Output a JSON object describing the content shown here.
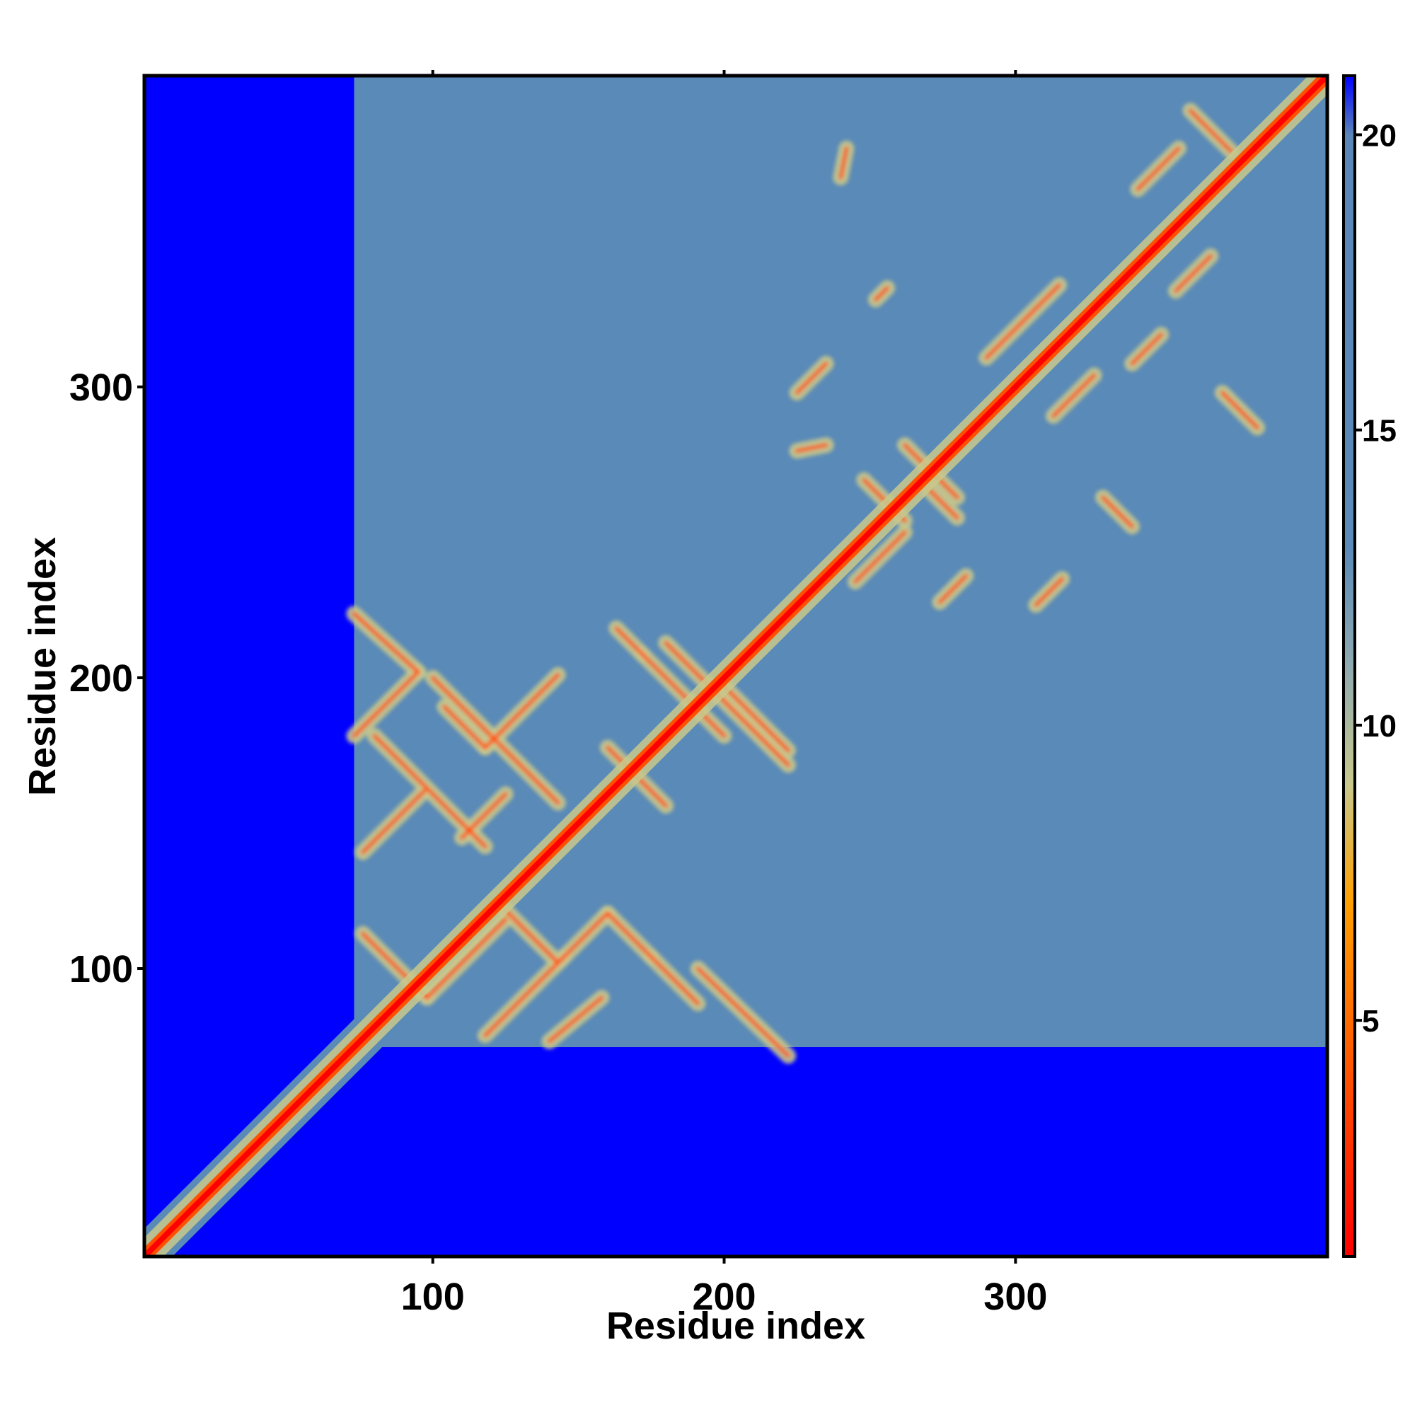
{
  "chart_data": {
    "type": "heatmap",
    "title": "",
    "xlabel": "Residue index",
    "ylabel": "Residue index",
    "xlim": [
      1,
      407
    ],
    "ylim": [
      1,
      407
    ],
    "x_ticks": [
      100,
      200,
      300
    ],
    "y_ticks": [
      100,
      200,
      300
    ],
    "x_tick_labels": [
      "100",
      "200",
      "300"
    ],
    "y_tick_labels": [
      "100",
      "200",
      "300"
    ],
    "colorbar": {
      "range": [
        1,
        21
      ],
      "ticks": [
        5,
        10,
        15,
        20
      ],
      "tick_labels": [
        "5",
        "10",
        "15",
        "20"
      ],
      "stops": [
        {
          "value": 1,
          "color": "#ff0000"
        },
        {
          "value": 4,
          "color": "#ff5000"
        },
        {
          "value": 7,
          "color": "#ffa000"
        },
        {
          "value": 9,
          "color": "#c8c88c"
        },
        {
          "value": 11,
          "color": "#8faab0"
        },
        {
          "value": 13,
          "color": "#5a8ab8"
        },
        {
          "value": 20,
          "color": "#5a85b8"
        },
        {
          "value": 21,
          "color": "#0000ff"
        }
      ]
    },
    "protein_region": {
      "core_residue_range": [
        73,
        407
      ],
      "n_terminal_tail_range": [
        1,
        73
      ],
      "domain_1": [
        73,
        225
      ],
      "domain_2": [
        225,
        407
      ]
    },
    "diagonal": {
      "from": 1,
      "to": 407,
      "value": 1
    },
    "secondary_contacts": [
      {
        "x1": 73,
        "y1": 222,
        "x2": 95,
        "y2": 202
      },
      {
        "x1": 95,
        "y1": 202,
        "x2": 73,
        "y2": 180
      },
      {
        "x1": 80,
        "y1": 180,
        "x2": 118,
        "y2": 142
      },
      {
        "x1": 100,
        "y1": 200,
        "x2": 143,
        "y2": 157
      },
      {
        "x1": 104,
        "y1": 190,
        "x2": 118,
        "y2": 176
      },
      {
        "x1": 118,
        "y1": 176,
        "x2": 143,
        "y2": 201
      },
      {
        "x1": 76,
        "y1": 140,
        "x2": 97,
        "y2": 161
      },
      {
        "x1": 76,
        "y1": 112,
        "x2": 98,
        "y2": 90
      },
      {
        "x1": 98,
        "y1": 90,
        "x2": 125,
        "y2": 117
      },
      {
        "x1": 118,
        "y1": 77,
        "x2": 145,
        "y2": 104
      },
      {
        "x1": 110,
        "y1": 145,
        "x2": 125,
        "y2": 160
      },
      {
        "x1": 125,
        "y1": 120,
        "x2": 143,
        "y2": 102
      },
      {
        "x1": 143,
        "y1": 102,
        "x2": 160,
        "y2": 119
      },
      {
        "x1": 160,
        "y1": 119,
        "x2": 175,
        "y2": 104
      },
      {
        "x1": 175,
        "y1": 104,
        "x2": 191,
        "y2": 88
      },
      {
        "x1": 160,
        "y1": 176,
        "x2": 180,
        "y2": 156
      },
      {
        "x1": 163,
        "y1": 217,
        "x2": 172,
        "y2": 208
      },
      {
        "x1": 172,
        "y1": 208,
        "x2": 200,
        "y2": 180
      },
      {
        "x1": 180,
        "y1": 212,
        "x2": 222,
        "y2": 170
      },
      {
        "x1": 191,
        "y1": 100,
        "x2": 222,
        "y2": 70
      },
      {
        "x1": 200,
        "y1": 197,
        "x2": 222,
        "y2": 175
      },
      {
        "x1": 140,
        "y1": 75,
        "x2": 158,
        "y2": 90
      },
      {
        "x1": 225,
        "y1": 298,
        "x2": 235,
        "y2": 308
      },
      {
        "x1": 225,
        "y1": 278,
        "x2": 235,
        "y2": 280
      },
      {
        "x1": 245,
        "y1": 233,
        "x2": 262,
        "y2": 250
      },
      {
        "x1": 248,
        "y1": 268,
        "x2": 262,
        "y2": 254
      },
      {
        "x1": 262,
        "y1": 280,
        "x2": 280,
        "y2": 262
      },
      {
        "x1": 270,
        "y1": 265,
        "x2": 280,
        "y2": 255
      },
      {
        "x1": 274,
        "y1": 226,
        "x2": 283,
        "y2": 235
      },
      {
        "x1": 290,
        "y1": 310,
        "x2": 315,
        "y2": 335
      },
      {
        "x1": 307,
        "y1": 225,
        "x2": 316,
        "y2": 234
      },
      {
        "x1": 313,
        "y1": 290,
        "x2": 327,
        "y2": 304
      },
      {
        "x1": 340,
        "y1": 308,
        "x2": 350,
        "y2": 318
      },
      {
        "x1": 342,
        "y1": 368,
        "x2": 356,
        "y2": 382
      },
      {
        "x1": 355,
        "y1": 333,
        "x2": 367,
        "y2": 345
      },
      {
        "x1": 360,
        "y1": 395,
        "x2": 374,
        "y2": 381
      },
      {
        "x1": 371,
        "y1": 298,
        "x2": 383,
        "y2": 286
      },
      {
        "x1": 240,
        "y1": 372,
        "x2": 242,
        "y2": 382
      },
      {
        "x1": 252,
        "y1": 330,
        "x2": 256,
        "y2": 334
      },
      {
        "x1": 330,
        "y1": 262,
        "x2": 340,
        "y2": 252
      }
    ]
  }
}
